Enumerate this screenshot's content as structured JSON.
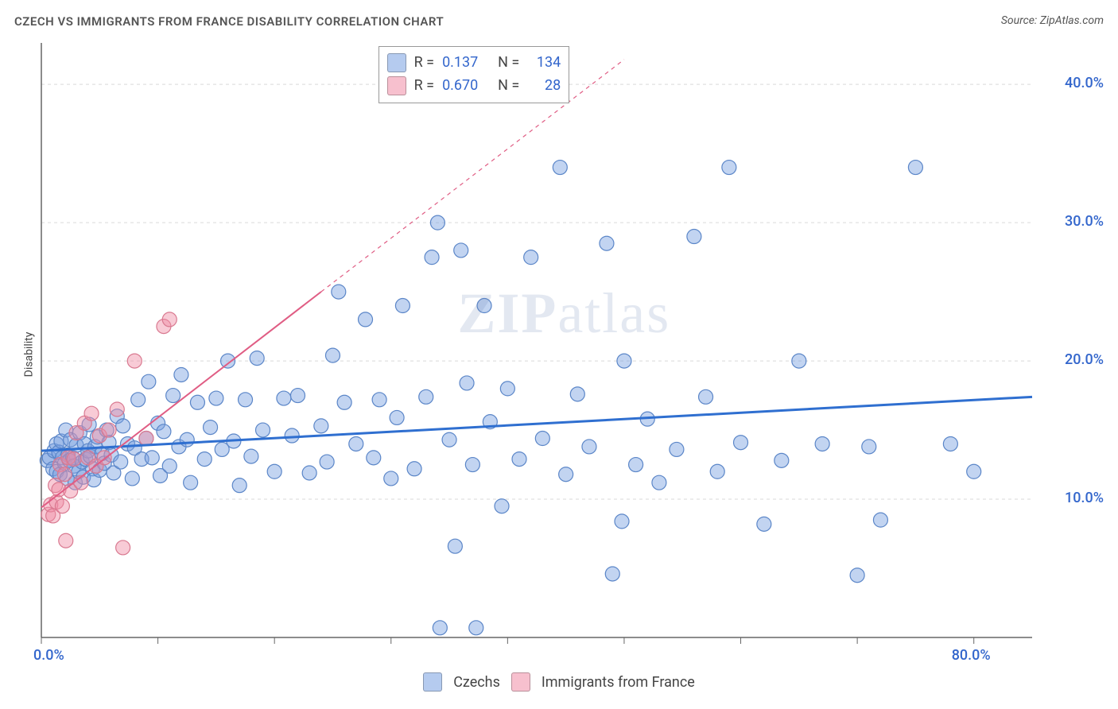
{
  "title": "CZECH VS IMMIGRANTS FROM FRANCE DISABILITY CORRELATION CHART",
  "source": "Source: ZipAtlas.com",
  "ylabel": "Disability",
  "watermark": "ZIPatlas",
  "chart": {
    "type": "scatter",
    "xmin": 0,
    "xmax": 85,
    "ymin": 0,
    "ymax": 43,
    "xtick_labels": [
      {
        "v": 0,
        "label": "0.0%"
      },
      {
        "v": 80,
        "label": "80.0%"
      }
    ],
    "xtick_minors": [
      10,
      20,
      30,
      40,
      50,
      60,
      70
    ],
    "ytick_labels": [
      {
        "v": 10,
        "label": "10.0%"
      },
      {
        "v": 20,
        "label": "20.0%"
      },
      {
        "v": 30,
        "label": "30.0%"
      },
      {
        "v": 40,
        "label": "40.0%"
      }
    ],
    "grid_color": "#d9d9d9",
    "axis_color": "#666666",
    "background_color": "#ffffff",
    "marker_radius": 9,
    "marker_stroke_width": 1.2,
    "series": [
      {
        "name": "Czechs",
        "fill": "rgba(120,160,225,0.45)",
        "stroke": "#5b86c8",
        "R": "0.137",
        "N": "134",
        "trend": {
          "x1": 0,
          "y1": 13.5,
          "x2": 85,
          "y2": 17.4,
          "color": "#2f6fd0",
          "width": 3
        },
        "points": [
          [
            0.5,
            12.8
          ],
          [
            0.7,
            13.0
          ],
          [
            1.0,
            12.2
          ],
          [
            1.1,
            13.5
          ],
          [
            1.3,
            14.0
          ],
          [
            1.3,
            12.0
          ],
          [
            1.5,
            13.4
          ],
          [
            1.6,
            11.8
          ],
          [
            1.7,
            14.2
          ],
          [
            1.8,
            13.0
          ],
          [
            2.0,
            12.6
          ],
          [
            2.1,
            15.0
          ],
          [
            2.2,
            11.5
          ],
          [
            2.3,
            13.2
          ],
          [
            2.4,
            12.8
          ],
          [
            2.5,
            14.3
          ],
          [
            2.7,
            13.0
          ],
          [
            2.8,
            12.4
          ],
          [
            2.9,
            11.2
          ],
          [
            3.0,
            13.9
          ],
          [
            3.2,
            12.0
          ],
          [
            3.3,
            14.8
          ],
          [
            3.5,
            12.7
          ],
          [
            3.6,
            11.6
          ],
          [
            3.7,
            14.0
          ],
          [
            3.8,
            12.9
          ],
          [
            4.0,
            13.5
          ],
          [
            4.1,
            15.4
          ],
          [
            4.2,
            13.1
          ],
          [
            4.4,
            12.2
          ],
          [
            4.5,
            11.4
          ],
          [
            4.6,
            13.8
          ],
          [
            4.8,
            14.5
          ],
          [
            5.0,
            12.1
          ],
          [
            5.2,
            13.3
          ],
          [
            5.4,
            12.6
          ],
          [
            5.6,
            15.0
          ],
          [
            5.8,
            14.1
          ],
          [
            6.0,
            13.2
          ],
          [
            6.2,
            11.9
          ],
          [
            6.5,
            16.0
          ],
          [
            6.8,
            12.7
          ],
          [
            7.0,
            15.3
          ],
          [
            7.4,
            14.0
          ],
          [
            7.8,
            11.5
          ],
          [
            8.0,
            13.7
          ],
          [
            8.3,
            17.2
          ],
          [
            8.6,
            12.9
          ],
          [
            9.0,
            14.4
          ],
          [
            9.2,
            18.5
          ],
          [
            9.5,
            13.0
          ],
          [
            10.0,
            15.5
          ],
          [
            10.2,
            11.7
          ],
          [
            10.5,
            14.9
          ],
          [
            11.0,
            12.4
          ],
          [
            11.3,
            17.5
          ],
          [
            11.8,
            13.8
          ],
          [
            12.0,
            19.0
          ],
          [
            12.5,
            14.3
          ],
          [
            12.8,
            11.2
          ],
          [
            13.4,
            17.0
          ],
          [
            14.0,
            12.9
          ],
          [
            14.5,
            15.2
          ],
          [
            15.0,
            17.3
          ],
          [
            15.5,
            13.6
          ],
          [
            16.0,
            20.0
          ],
          [
            16.5,
            14.2
          ],
          [
            17.0,
            11.0
          ],
          [
            17.5,
            17.2
          ],
          [
            18.0,
            13.1
          ],
          [
            18.5,
            20.2
          ],
          [
            19.0,
            15.0
          ],
          [
            20.0,
            12.0
          ],
          [
            20.8,
            17.3
          ],
          [
            21.5,
            14.6
          ],
          [
            22.0,
            17.5
          ],
          [
            23.0,
            11.9
          ],
          [
            24.0,
            15.3
          ],
          [
            24.5,
            12.7
          ],
          [
            25.0,
            20.4
          ],
          [
            25.5,
            25.0
          ],
          [
            26.0,
            17.0
          ],
          [
            27.0,
            14.0
          ],
          [
            27.8,
            23.0
          ],
          [
            28.5,
            13.0
          ],
          [
            29.0,
            17.2
          ],
          [
            30.0,
            11.5
          ],
          [
            30.5,
            15.9
          ],
          [
            31.0,
            24.0
          ],
          [
            32.0,
            12.2
          ],
          [
            33.0,
            17.4
          ],
          [
            33.5,
            27.5
          ],
          [
            34.0,
            30.0
          ],
          [
            34.2,
            0.7
          ],
          [
            35.0,
            14.3
          ],
          [
            35.5,
            6.6
          ],
          [
            36.0,
            28.0
          ],
          [
            36.5,
            18.4
          ],
          [
            37.0,
            12.5
          ],
          [
            37.3,
            0.7
          ],
          [
            38.0,
            24.0
          ],
          [
            38.5,
            15.6
          ],
          [
            39.5,
            9.5
          ],
          [
            40.0,
            18.0
          ],
          [
            41.0,
            12.9
          ],
          [
            42.0,
            27.5
          ],
          [
            43.0,
            14.4
          ],
          [
            44.5,
            34.0
          ],
          [
            45.0,
            11.8
          ],
          [
            46.0,
            17.6
          ],
          [
            47.0,
            13.8
          ],
          [
            48.5,
            28.5
          ],
          [
            49.0,
            4.6
          ],
          [
            49.8,
            8.4
          ],
          [
            50.0,
            20.0
          ],
          [
            51.0,
            12.5
          ],
          [
            52.0,
            15.8
          ],
          [
            53.0,
            11.2
          ],
          [
            54.5,
            13.6
          ],
          [
            56.0,
            29.0
          ],
          [
            57.0,
            17.4
          ],
          [
            58.0,
            12.0
          ],
          [
            59.0,
            34.0
          ],
          [
            60.0,
            14.1
          ],
          [
            62.0,
            8.2
          ],
          [
            63.5,
            12.8
          ],
          [
            65.0,
            20.0
          ],
          [
            67.0,
            14.0
          ],
          [
            70.0,
            4.5
          ],
          [
            71.0,
            13.8
          ],
          [
            72.0,
            8.5
          ],
          [
            75.0,
            34.0
          ],
          [
            78.0,
            14.0
          ],
          [
            80.0,
            12.0
          ]
        ]
      },
      {
        "name": "Immigrants from France",
        "fill": "rgba(240,140,165,0.45)",
        "stroke": "#d97990",
        "R": "0.670",
        "N": "28",
        "trend": {
          "x1": 0,
          "y1": 9.4,
          "x2": 24,
          "y2": 25.0,
          "ext_x2": 50,
          "ext_y2": 41.8,
          "color": "#e05d84",
          "width": 2
        },
        "points": [
          [
            0.6,
            8.9
          ],
          [
            0.8,
            9.6
          ],
          [
            1.0,
            8.8
          ],
          [
            1.2,
            11.0
          ],
          [
            1.3,
            9.8
          ],
          [
            1.5,
            10.7
          ],
          [
            1.6,
            12.5
          ],
          [
            1.8,
            9.5
          ],
          [
            2.0,
            11.8
          ],
          [
            2.1,
            7.0
          ],
          [
            2.3,
            13.0
          ],
          [
            2.5,
            10.6
          ],
          [
            2.8,
            12.9
          ],
          [
            3.0,
            14.8
          ],
          [
            3.4,
            11.2
          ],
          [
            3.7,
            15.5
          ],
          [
            4.0,
            13.0
          ],
          [
            4.3,
            16.2
          ],
          [
            4.7,
            12.4
          ],
          [
            5.0,
            14.6
          ],
          [
            5.4,
            13.0
          ],
          [
            5.8,
            15.0
          ],
          [
            6.5,
            16.5
          ],
          [
            7.0,
            6.5
          ],
          [
            8.0,
            20.0
          ],
          [
            9.0,
            14.4
          ],
          [
            10.5,
            22.5
          ],
          [
            11.0,
            23.0
          ]
        ]
      }
    ],
    "legend_top": {
      "rows": [
        {
          "swatch": "rgba(120,160,225,0.55)",
          "R_label": "R =",
          "R": "0.137",
          "N_label": "N =",
          "N": "134"
        },
        {
          "swatch": "rgba(240,140,165,0.55)",
          "R_label": "R =",
          "R": "0.670",
          "N_label": "N =",
          "N": "28"
        }
      ]
    },
    "legend_bottom": [
      {
        "swatch": "rgba(120,160,225,0.55)",
        "label": "Czechs"
      },
      {
        "swatch": "rgba(240,140,165,0.55)",
        "label": "Immigrants from France"
      }
    ]
  }
}
